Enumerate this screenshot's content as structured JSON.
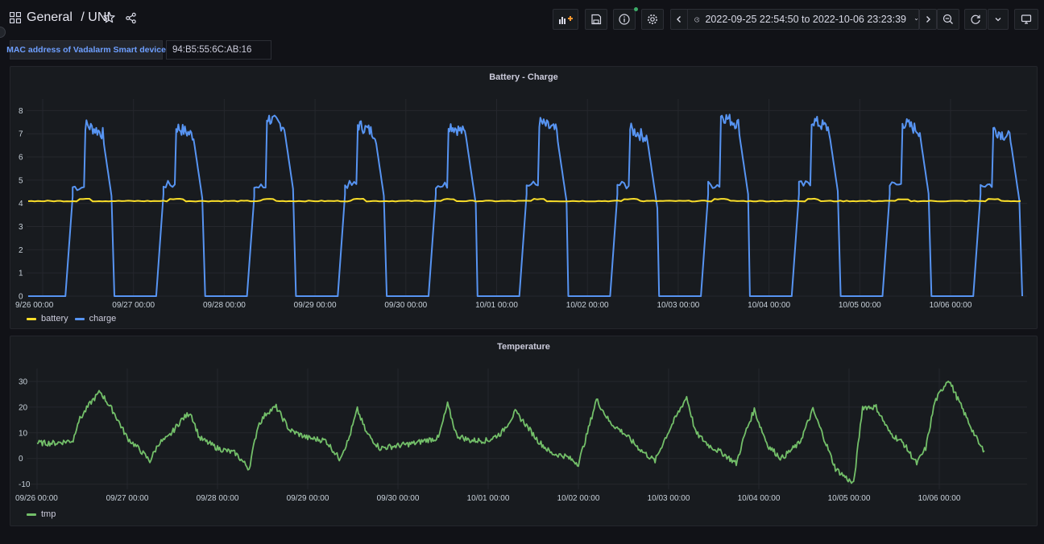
{
  "header": {
    "breadcrumb_folder": "General",
    "breadcrumb_sep": "/",
    "breadcrumb_dashboard": "UNI",
    "time_range": "2022-09-25 22:54:50 to 2022-10-06 23:23:39",
    "icons": [
      "apps-icon",
      "star-icon",
      "share-icon",
      "add-panel-icon",
      "save-icon",
      "info-icon",
      "settings-icon",
      "chevron-left-icon",
      "clock-icon",
      "chevron-down-icon",
      "chevron-right-icon",
      "zoom-out-icon",
      "refresh-icon",
      "chevron-down-icon",
      "tv-icon"
    ]
  },
  "variables": {
    "mac_label": "MAC address of Vadalarm Smart device",
    "mac_value": "94:B5:55:6C:AB:16"
  },
  "colors": {
    "battery": "#fade2a",
    "charge": "#5794f2",
    "tmp": "#73bf69",
    "accent": "#6e9fff"
  },
  "chart_data": [
    {
      "type": "line",
      "title": "Battery - Charge",
      "x_unit": "date",
      "x_ticks": [
        "9/26 00:00",
        "09/27 00:00",
        "09/28 00:00",
        "09/29 00:00",
        "09/30 00:00",
        "10/01 00:00",
        "10/02 00:00",
        "10/03 00:00",
        "10/04 00:00",
        "10/05 00:00",
        "10/06 00:00"
      ],
      "y_ticks": [
        "0",
        "1",
        "2",
        "3",
        "4",
        "5",
        "6",
        "7",
        "8"
      ],
      "ylim": [
        0,
        8.5
      ],
      "grid": true,
      "legend_position": "bottom-left",
      "series": [
        {
          "name": "battery",
          "color": "#fade2a",
          "baseline": 4.1,
          "peak": 4.2
        },
        {
          "name": "charge",
          "color": "#5794f2",
          "day_cycles": [
            {
              "day": "09/26",
              "mid_level": 4.7,
              "peak": 7.5
            },
            {
              "day": "09/27",
              "mid_level": 4.8,
              "peak": 7.4
            },
            {
              "day": "09/28",
              "mid_level": 4.7,
              "peak": 7.8
            },
            {
              "day": "09/29",
              "mid_level": 4.8,
              "peak": 7.5
            },
            {
              "day": "09/30",
              "mid_level": 4.8,
              "peak": 7.5
            },
            {
              "day": "10/01",
              "mid_level": 4.8,
              "peak": 7.6
            },
            {
              "day": "10/02",
              "mid_level": 4.8,
              "peak": 7.3
            },
            {
              "day": "10/03",
              "mid_level": 4.8,
              "peak": 7.9
            },
            {
              "day": "10/04",
              "mid_level": 4.8,
              "peak": 7.7
            },
            {
              "day": "10/05",
              "mid_level": 4.8,
              "peak": 7.6
            },
            {
              "day": "10/06",
              "mid_level": 4.8,
              "peak": 7.3
            }
          ]
        }
      ]
    },
    {
      "type": "line",
      "title": "Temperature",
      "x_unit": "date",
      "x_ticks": [
        "09/26 00:00",
        "09/27 00:00",
        "09/28 00:00",
        "09/29 00:00",
        "09/30 00:00",
        "10/01 00:00",
        "10/02 00:00",
        "10/03 00:00",
        "10/04 00:00",
        "10/05 00:00",
        "10/06 00:00"
      ],
      "y_ticks": [
        "-10",
        "0",
        "10",
        "20",
        "30"
      ],
      "ylim": [
        -12,
        35
      ],
      "grid": true,
      "legend_position": "bottom-left",
      "series": [
        {
          "name": "tmp",
          "color": "#73bf69",
          "points": [
            [
              0.0,
              6
            ],
            [
              0.2,
              6
            ],
            [
              0.4,
              7
            ],
            [
              0.45,
              14
            ],
            [
              0.6,
              22
            ],
            [
              0.7,
              26
            ],
            [
              0.85,
              18
            ],
            [
              1.0,
              8
            ],
            [
              1.15,
              3
            ],
            [
              1.25,
              -1
            ],
            [
              1.35,
              6
            ],
            [
              1.45,
              8
            ],
            [
              1.6,
              15
            ],
            [
              1.7,
              18
            ],
            [
              1.8,
              8
            ],
            [
              2.0,
              4
            ],
            [
              2.2,
              2
            ],
            [
              2.35,
              -4
            ],
            [
              2.45,
              13
            ],
            [
              2.55,
              18
            ],
            [
              2.65,
              20
            ],
            [
              2.8,
              11
            ],
            [
              3.0,
              8
            ],
            [
              3.2,
              7
            ],
            [
              3.35,
              0
            ],
            [
              3.45,
              7
            ],
            [
              3.55,
              19
            ],
            [
              3.65,
              10
            ],
            [
              3.8,
              4
            ],
            [
              4.0,
              5
            ],
            [
              4.2,
              6
            ],
            [
              4.3,
              7
            ],
            [
              4.45,
              8
            ],
            [
              4.55,
              21
            ],
            [
              4.65,
              9
            ],
            [
              4.8,
              7
            ],
            [
              5.0,
              7
            ],
            [
              5.15,
              10
            ],
            [
              5.3,
              18
            ],
            [
              5.4,
              14
            ],
            [
              5.55,
              7
            ],
            [
              5.7,
              2
            ],
            [
              5.85,
              1
            ],
            [
              6.0,
              -2
            ],
            [
              6.1,
              10
            ],
            [
              6.2,
              23
            ],
            [
              6.35,
              14
            ],
            [
              6.5,
              10
            ],
            [
              6.7,
              3
            ],
            [
              6.85,
              -1
            ],
            [
              6.95,
              7
            ],
            [
              7.05,
              14
            ],
            [
              7.2,
              24
            ],
            [
              7.3,
              10
            ],
            [
              7.45,
              5
            ],
            [
              7.6,
              2
            ],
            [
              7.75,
              -2
            ],
            [
              7.85,
              10
            ],
            [
              7.95,
              19
            ],
            [
              8.0,
              14
            ],
            [
              8.1,
              5
            ],
            [
              8.25,
              0
            ],
            [
              8.45,
              6
            ],
            [
              8.6,
              19
            ],
            [
              8.7,
              10
            ],
            [
              8.85,
              -4
            ],
            [
              9.05,
              -10
            ],
            [
              9.15,
              20
            ],
            [
              9.3,
              20
            ],
            [
              9.45,
              10
            ],
            [
              9.6,
              6
            ],
            [
              9.75,
              -2
            ],
            [
              9.85,
              4
            ],
            [
              9.95,
              22
            ],
            [
              10.1,
              31
            ],
            [
              10.3,
              16
            ],
            [
              10.45,
              5
            ],
            [
              10.5,
              3
            ]
          ]
        }
      ]
    }
  ]
}
